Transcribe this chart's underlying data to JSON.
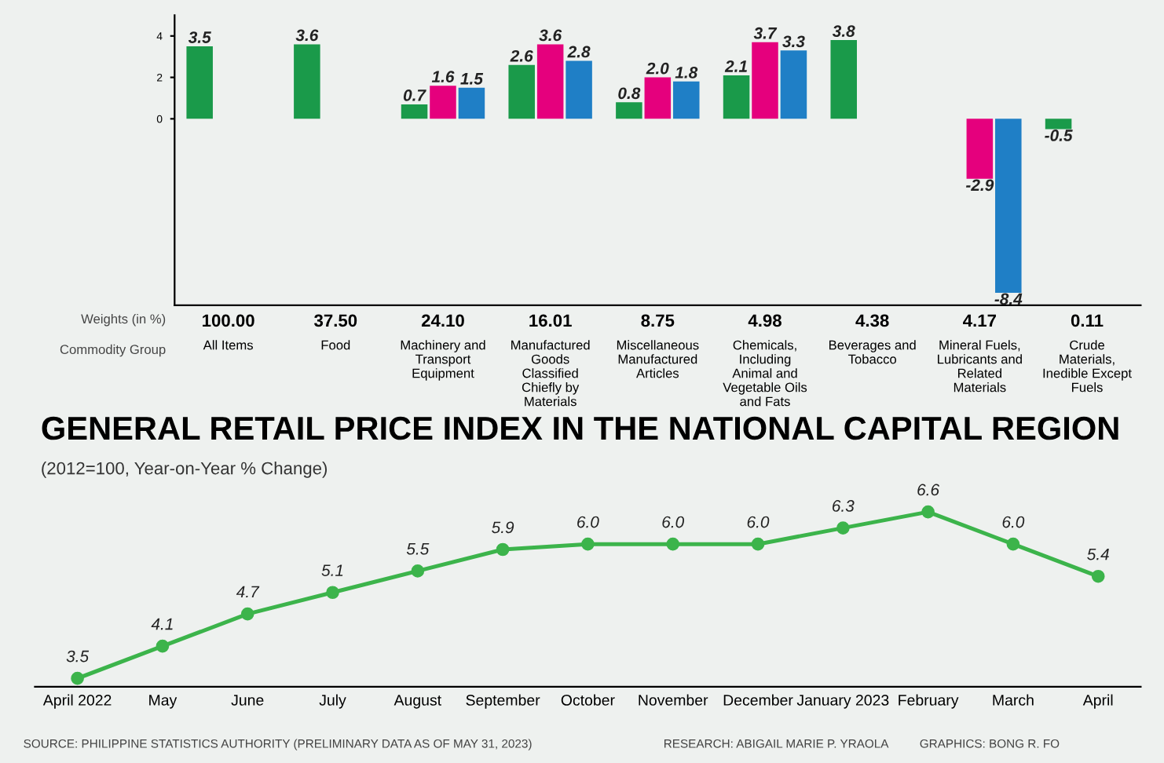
{
  "chart_data": [
    {
      "type": "bar",
      "categories": [
        "All Items",
        "Food",
        "Machinery and Transport Equipment",
        "Manufactured Goods Classified Chiefly by Materials",
        "Miscellaneous Manufactured Articles",
        "Chemicals, Including Animal and Vegetable Oils and Fats",
        "Beverages and Tobacco",
        "Mineral Fuels, Lubricants and Related Materials",
        "Crude Materials, Inedible Except Fuels"
      ],
      "series": [
        {
          "color": "#1a9a4a",
          "values": [
            3.5,
            3.6,
            0.7,
            2.6,
            0.8,
            2.1,
            3.8,
            null,
            -0.5
          ],
          "value_labels": [
            "3.5",
            "3.6",
            "0.7",
            "2.6",
            "0.8",
            "2.1",
            "3.8",
            null,
            "-0.5"
          ]
        },
        {
          "color": "#e5007d",
          "values": [
            null,
            null,
            1.6,
            3.6,
            2.0,
            3.7,
            null,
            -2.9,
            null
          ],
          "value_labels": [
            null,
            null,
            "1.6",
            "3.6",
            "2.0",
            "3.7",
            null,
            "-2.9",
            null
          ]
        },
        {
          "color": "#1f7fc6",
          "values": [
            null,
            null,
            1.5,
            2.8,
            1.8,
            3.3,
            null,
            -8.4,
            null
          ],
          "value_labels": [
            null,
            null,
            "1.5",
            "2.8",
            "1.8",
            "3.3",
            null,
            "-8.4",
            null
          ]
        }
      ],
      "ylim": [
        -9,
        5
      ],
      "yticks": [
        0,
        2,
        4
      ],
      "grid": false,
      "legend": false,
      "annotations": [
        "Weights (in %)",
        "Commodity Group",
        "100.00",
        "37.50",
        "24.10",
        "16.01",
        "8.75",
        "4.98",
        "4.38",
        "4.17",
        "0.11"
      ]
    },
    {
      "type": "line",
      "title": "GENERAL RETAIL PRICE INDEX IN THE NATIONAL CAPITAL REGION",
      "subtitle": "(2012=100, Year-on-Year % Change)",
      "categories": [
        "April 2022",
        "May",
        "June",
        "July",
        "August",
        "September",
        "October",
        "November",
        "December",
        "January 2023",
        "February",
        "March",
        "April"
      ],
      "values": [
        3.5,
        4.1,
        4.7,
        5.1,
        5.5,
        5.9,
        6.0,
        6.0,
        6.0,
        6.3,
        6.6,
        6.0,
        5.4
      ],
      "value_labels": [
        "3.5",
        "4.1",
        "4.7",
        "5.1",
        "5.5",
        "5.9",
        "6.0",
        "6.0",
        "6.0",
        "6.3",
        "6.6",
        "6.0",
        "5.4"
      ],
      "color": "#3cb44b",
      "marker": "circle",
      "tick_labels": "x",
      "grid": false,
      "annotations": [
        "SOURCE: PHILIPPINE STATISTICS AUTHORITY (PRELIMINARY DATA AS OF MAY 31, 2023)",
        "RESEARCH: ABIGAIL MARIE P. YRAOLA",
        "GRAPHICS: BONG R. FO"
      ]
    }
  ]
}
